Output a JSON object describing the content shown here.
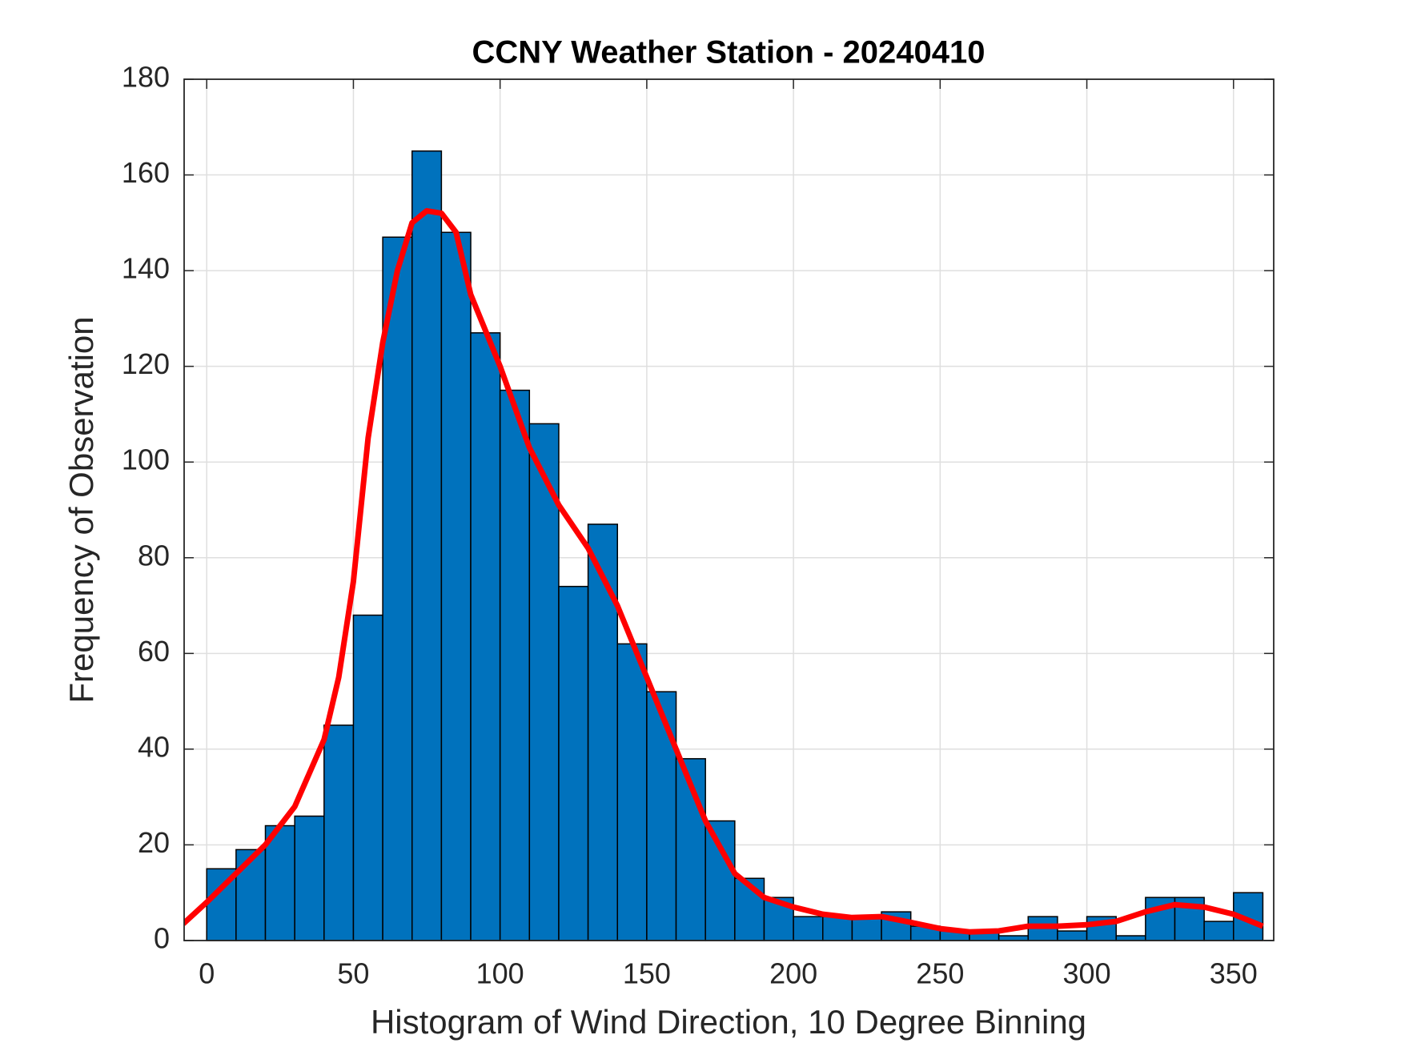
{
  "chart_data": {
    "type": "histogram",
    "title": "CCNY Weather Station - 20240410",
    "xlabel": "Histogram of Wind Direction, 10 Degree Binning",
    "ylabel": "Frequency of Observation",
    "bins": [
      0,
      10,
      20,
      30,
      40,
      50,
      60,
      70,
      80,
      90,
      100,
      110,
      120,
      130,
      140,
      150,
      160,
      170,
      180,
      190,
      200,
      210,
      220,
      230,
      240,
      250,
      260,
      270,
      280,
      290,
      300,
      310,
      320,
      330,
      340,
      350,
      360
    ],
    "counts": [
      15,
      19,
      24,
      26,
      45,
      68,
      147,
      165,
      148,
      127,
      115,
      108,
      74,
      87,
      62,
      52,
      38,
      25,
      13,
      9,
      5,
      5,
      5,
      6,
      3,
      2,
      2,
      1,
      5,
      2,
      5,
      1,
      9,
      9,
      4,
      10
    ],
    "color": "#0072bd",
    "edgecolor": "#000000",
    "curve": {
      "color": "#ff0000",
      "x": [
        -8,
        0,
        10,
        20,
        30,
        40,
        45,
        50,
        55,
        60,
        65,
        70,
        75,
        80,
        85,
        90,
        100,
        110,
        120,
        130,
        140,
        150,
        160,
        170,
        180,
        190,
        200,
        210,
        220,
        230,
        240,
        250,
        260,
        270,
        280,
        290,
        300,
        310,
        320,
        330,
        340,
        350,
        360
      ],
      "values": [
        3.5,
        8,
        14,
        20,
        28,
        42,
        55,
        75,
        105,
        125,
        140,
        150,
        152.5,
        152,
        148,
        135,
        120,
        103,
        91,
        82,
        70,
        55,
        40,
        25,
        14,
        9,
        7,
        5.5,
        4.8,
        5,
        3.8,
        2.5,
        1.8,
        2,
        3,
        3,
        3.3,
        4,
        6,
        7.5,
        7,
        5.5,
        3
      ]
    },
    "xlim": [
      -7.7,
      363.7
    ],
    "ylim": [
      0,
      180
    ],
    "xticks": [
      0,
      50,
      100,
      150,
      200,
      250,
      300,
      350
    ],
    "yticks": [
      0,
      20,
      40,
      60,
      80,
      100,
      120,
      140,
      160,
      180
    ],
    "grid": true
  }
}
